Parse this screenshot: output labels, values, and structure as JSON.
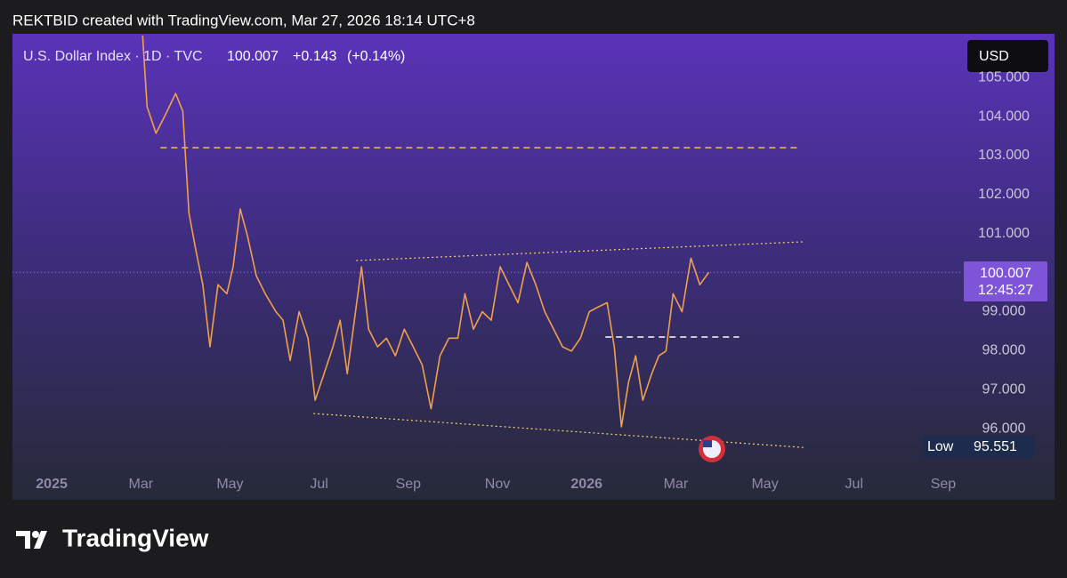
{
  "chart_data": {
    "type": "line",
    "header": "REKTBID created with TradingView.com, Mar 27, 2026 18:14 UTC+8",
    "symbol": "U.S. Dollar Index · 1D · TVC",
    "last_price": 100.007,
    "change": "+0.143",
    "change_pct": "(+0.14%)",
    "currency": "USD",
    "countdown": "12:45:27",
    "low_label": "Low",
    "low": 95.551,
    "brand": "TradingView",
    "series": [
      {
        "name": "U.S. Dollar Index",
        "color": "#f0a04b",
        "x": [
          2.04,
          2.14,
          2.34,
          2.54,
          2.78,
          2.94,
          3.08,
          3.23,
          3.39,
          3.55,
          3.73,
          3.93,
          4.07,
          4.23,
          4.39,
          4.59,
          4.79,
          5.03,
          5.19,
          5.35,
          5.55,
          5.75,
          5.91,
          6.11,
          6.31,
          6.47,
          6.63,
          6.79,
          6.95,
          7.11,
          7.31,
          7.51,
          7.71,
          7.91,
          8.11,
          8.31,
          8.51,
          8.71,
          8.91,
          9.11,
          9.27,
          9.46,
          9.66,
          9.86,
          10.06,
          10.26,
          10.46,
          10.66,
          10.86,
          11.06,
          11.26,
          11.46,
          11.66,
          11.86,
          12.06,
          12.26,
          12.46,
          12.62,
          12.78,
          12.94,
          13.1,
          13.26,
          13.46,
          13.62,
          13.78,
          13.94,
          14.14,
          14.34,
          14.54,
          14.74
        ],
        "values": [
          106.07,
          104.25,
          103.57,
          104.02,
          104.59,
          104.14,
          101.52,
          100.6,
          99.69,
          98.1,
          99.69,
          99.46,
          100.15,
          101.63,
          100.95,
          99.92,
          99.46,
          99.0,
          98.78,
          97.75,
          99.0,
          98.32,
          96.73,
          97.41,
          98.1,
          98.78,
          97.41,
          98.78,
          100.15,
          98.55,
          98.1,
          98.32,
          97.87,
          98.55,
          98.1,
          97.64,
          96.51,
          97.87,
          98.32,
          98.32,
          99.46,
          98.55,
          99.0,
          98.78,
          100.15,
          99.69,
          99.23,
          100.26,
          99.69,
          99.0,
          98.55,
          98.1,
          97.99,
          98.32,
          99.0,
          99.12,
          99.23,
          98.1,
          96.05,
          97.19,
          97.87,
          96.73,
          97.41,
          97.87,
          97.99,
          99.46,
          99.0,
          100.37,
          99.69,
          100.007
        ]
      }
    ],
    "lines": [
      {
        "x": [
          2.44,
          16.81
        ],
        "y": [
          103.2,
          103.2
        ],
        "style": "dashed",
        "color": "#f0c060"
      },
      {
        "x": [
          12.42,
          15.42
        ],
        "y": [
          98.35,
          98.35
        ],
        "style": "dashed",
        "color": "#ffffff"
      },
      {
        "x": [
          6.83,
          16.87
        ],
        "y": [
          100.31,
          100.79
        ],
        "style": "dotted",
        "color": "#f5d36a"
      },
      {
        "x": [
          5.87,
          16.87
        ],
        "y": [
          96.39,
          95.52
        ],
        "style": "dotted",
        "color": "#f5d36a"
      }
    ],
    "xlim": [
      -0.88,
      20.4
    ],
    "xticks": [
      {
        "value": 0,
        "label": "2025"
      },
      {
        "value": 2,
        "label": "Mar"
      },
      {
        "value": 4,
        "label": "May"
      },
      {
        "value": 6,
        "label": "Jul"
      },
      {
        "value": 8,
        "label": "Sep"
      },
      {
        "value": 10,
        "label": "Nov"
      },
      {
        "value": 12,
        "label": "2026"
      },
      {
        "value": 14,
        "label": "Mar"
      },
      {
        "value": 16,
        "label": "May"
      },
      {
        "value": 18,
        "label": "Jul"
      },
      {
        "value": 20,
        "label": "Sep"
      }
    ],
    "ylim": [
      94.91,
      106.12
    ],
    "yticks": [
      {
        "value": 96,
        "label": "96.000"
      },
      {
        "value": 97,
        "label": "97.000"
      },
      {
        "value": 98,
        "label": "98.000"
      },
      {
        "value": 99,
        "label": "99.000"
      },
      {
        "value": 100,
        "label": "100.000"
      },
      {
        "value": 101,
        "label": "101.000"
      },
      {
        "value": 102,
        "label": "102.000"
      },
      {
        "value": 103,
        "label": "103.000"
      },
      {
        "value": 104,
        "label": "104.000"
      },
      {
        "value": 105,
        "label": "105.000"
      }
    ]
  }
}
